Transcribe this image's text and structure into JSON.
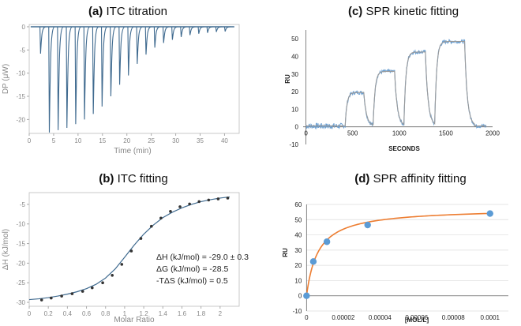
{
  "chart_data": [
    {
      "id": "a",
      "type": "line",
      "title_tag": "(a)",
      "title": "ITC titration",
      "xlabel": "Time (min)",
      "ylabel": "DP (μW)",
      "xlim": [
        0,
        43
      ],
      "ylim": [
        -23,
        0.5
      ],
      "xticks": [
        0,
        5,
        10,
        15,
        20,
        25,
        30,
        35,
        40
      ],
      "yticks": [
        0,
        -5,
        -10,
        -15,
        -20
      ],
      "injection_times": [
        2.2,
        4.0,
        5.8,
        7.6,
        9.4,
        11.2,
        13.0,
        14.8,
        16.6,
        18.4,
        20.2,
        22.0,
        23.8,
        25.6,
        27.4,
        29.2,
        31.0,
        32.8,
        34.6,
        36.4,
        38.2,
        40.0
      ],
      "peak_values": [
        -5.8,
        -22.8,
        -22.3,
        -21.8,
        -21.0,
        -20.0,
        -18.8,
        -17.2,
        -15.0,
        -12.5,
        -10.5,
        -8.0,
        -6.0,
        -4.5,
        -3.5,
        -2.8,
        -2.2,
        -1.8,
        -1.5,
        -1.3,
        -1.1,
        -1.0
      ]
    },
    {
      "id": "b",
      "type": "scatter",
      "title_tag": "(b)",
      "title": "ITC fitting",
      "xlabel": "Molar Ratio",
      "ylabel": "ΔH (kJ/mol)",
      "xlim": [
        0,
        2.2
      ],
      "ylim": [
        -31,
        -2
      ],
      "xticks": [
        0,
        0.2,
        0.4,
        0.6,
        0.8,
        1,
        1.2,
        1.4,
        1.6,
        1.8,
        2
      ],
      "yticks": [
        -5,
        -10,
        -15,
        -20,
        -25,
        -30
      ],
      "points_x": [
        0.13,
        0.23,
        0.34,
        0.45,
        0.56,
        0.66,
        0.77,
        0.87,
        0.97,
        1.07,
        1.17,
        1.28,
        1.38,
        1.48,
        1.58,
        1.68,
        1.78,
        1.88,
        1.98,
        2.08
      ],
      "points_y": [
        -29.4,
        -28.9,
        -28.4,
        -27.8,
        -27.2,
        -26.3,
        -25.0,
        -23.1,
        -20.3,
        -16.9,
        -13.7,
        -10.6,
        -8.5,
        -6.8,
        -5.6,
        -4.9,
        -4.3,
        -3.9,
        -3.6,
        -3.4
      ],
      "fit_x": [
        0,
        0.1,
        0.2,
        0.3,
        0.4,
        0.5,
        0.6,
        0.7,
        0.8,
        0.9,
        1.0,
        1.1,
        1.2,
        1.3,
        1.4,
        1.5,
        1.6,
        1.7,
        1.8,
        1.9,
        2.0,
        2.1
      ],
      "fit_y": [
        -29.3,
        -29.1,
        -28.8,
        -28.4,
        -27.9,
        -27.3,
        -26.5,
        -25.4,
        -23.8,
        -21.5,
        -18.5,
        -15.4,
        -12.6,
        -10.3,
        -8.4,
        -7.0,
        -5.9,
        -5.0,
        -4.3,
        -3.8,
        -3.4,
        -3.1
      ],
      "annotations": [
        "ΔH (kJ/mol) = -29.0 ± 0.3",
        "ΔG (kJ/mol) = -28.5",
        "-TΔS (kJ/mol) = 0.5"
      ]
    },
    {
      "id": "c",
      "type": "line",
      "title_tag": "(c)",
      "title": "SPR kinetic fitting",
      "xlabel": "SECONDS",
      "ylabel": "RU",
      "xlim": [
        -30,
        2000
      ],
      "ylim": [
        -10,
        55
      ],
      "xticks": [
        0,
        500,
        1000,
        1500,
        2000
      ],
      "yticks": [
        50,
        40,
        30,
        20,
        10,
        0,
        -10
      ],
      "injections": [
        {
          "start": 420,
          "end": 620,
          "plateau": 19
        },
        {
          "start": 720,
          "end": 950,
          "plateau": 31
        },
        {
          "start": 1050,
          "end": 1280,
          "plateau": 42
        },
        {
          "start": 1380,
          "end": 1700,
          "plateau": 48
        }
      ]
    },
    {
      "id": "d",
      "type": "scatter",
      "title_tag": "(d)",
      "title": "SPR affinity fitting",
      "xlabel": "[MOL/L]",
      "ylabel": "RU",
      "xlim": [
        -1e-06,
        0.00011
      ],
      "ylim": [
        -10,
        60
      ],
      "xticks": [
        0,
        2e-05,
        4e-05,
        6e-05,
        8e-05,
        0.0001
      ],
      "xtick_labels": [
        "0",
        "0.00002",
        "0.00004",
        "0.00006",
        "0.00008",
        "0.0001"
      ],
      "yticks": [
        60,
        50,
        40,
        30,
        20,
        10,
        0,
        -10
      ],
      "points_x": [
        0,
        3.7e-06,
        1.11e-05,
        3.33e-05,
        0.0001
      ],
      "points_y": [
        0,
        22.5,
        35.5,
        46.5,
        54
      ],
      "fit": {
        "rmax": 57.5,
        "kd": 6.3e-06
      }
    }
  ],
  "colors": {
    "trace": "#3f6a8f",
    "fit": "#9bbcd6",
    "spr_data": "#6b9fd1",
    "spr_fit": "#9a9a9a",
    "dot": "#5b9bd5",
    "orange": "#ed7d31",
    "axis": "#666666"
  }
}
